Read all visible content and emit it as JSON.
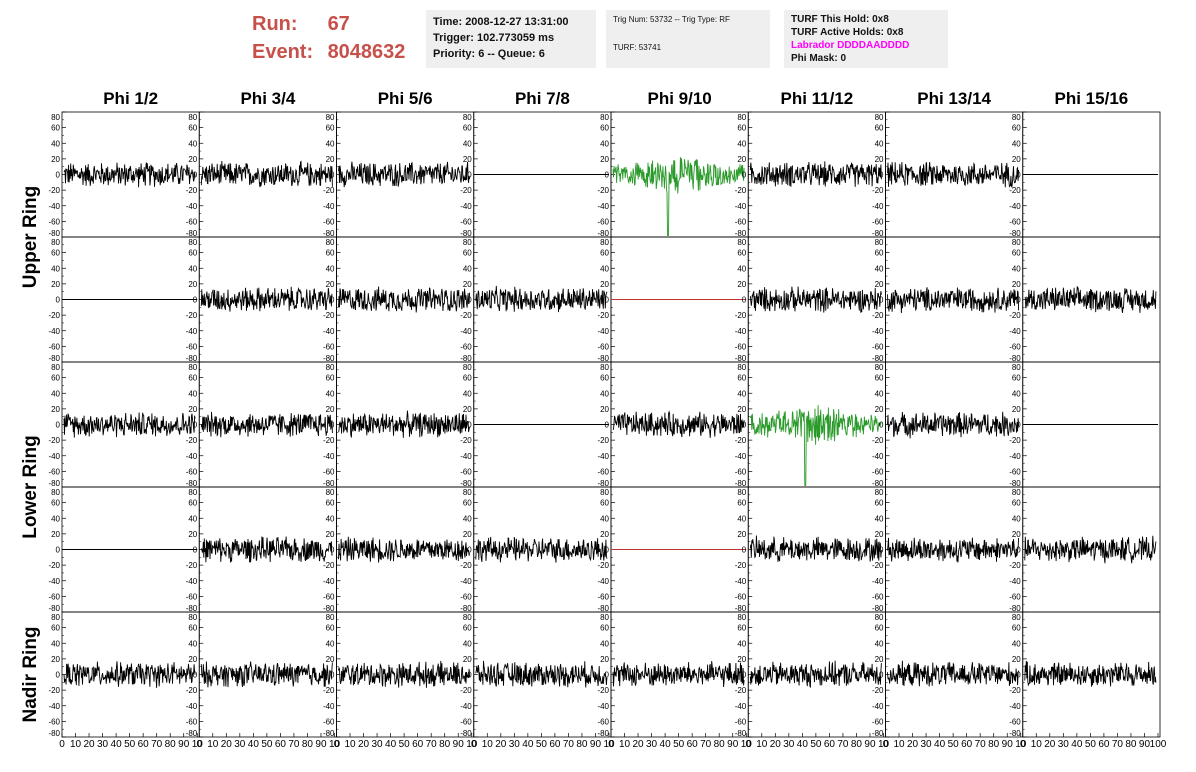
{
  "header": {
    "run_label": "Run:",
    "run_value": "67",
    "event_label": "Event:",
    "event_value": "8048632",
    "time": "Time: 2008-12-27 13:31:00",
    "trigger": "Trigger: 102.773059 ms",
    "priority": "Priority: 6 -- Queue: 6",
    "trig_num": "Trig Num: 53732 -- Trig Type: RF",
    "turf": "TURF: 53741",
    "turf_hold": "TURF This Hold: 0x8",
    "turf_active": "TURF Active Holds: 0x8",
    "labrador": "Labrador DDDDAADDDD",
    "phi_mask": "Phi Mask: 0"
  },
  "colors": {
    "header_red": "#c8504a",
    "info_bg": "#efefef",
    "labrador": "#ff00ff",
    "trace_normal": "#000000",
    "trace_triggered": "#2a9a2a",
    "trace_flat_red": "#c03030"
  },
  "chart_data": {
    "type": "line",
    "columns": [
      "Phi 1/2",
      "Phi 3/4",
      "Phi 5/6",
      "Phi 7/8",
      "Phi 9/10",
      "Phi 11/12",
      "Phi 13/14",
      "Phi 15/16"
    ],
    "ring_labels": [
      "Upper Ring",
      "Lower Ring",
      "Nadir Ring"
    ],
    "ylim": [
      -80,
      80
    ],
    "xlim": [
      0,
      100
    ],
    "yticks": [
      -80,
      -60,
      -40,
      -20,
      0,
      20,
      40,
      60,
      80
    ],
    "xticks": [
      0,
      10,
      20,
      30,
      40,
      50,
      60,
      70,
      80,
      90,
      100
    ],
    "row_styles": [
      [
        "n",
        "n",
        "n",
        "flat",
        "green",
        "n",
        "n",
        "flat"
      ],
      [
        "flat",
        "n",
        "n",
        "n",
        "flat-red",
        "n",
        "n",
        "n"
      ],
      [
        "n",
        "n",
        "n",
        "flat",
        "n",
        "green",
        "n",
        "flat"
      ],
      [
        "flat",
        "n",
        "n",
        "n",
        "flat-red",
        "n",
        "n",
        "n"
      ],
      [
        "n",
        "n",
        "n",
        "n",
        "n",
        "n",
        "n",
        "n"
      ]
    ],
    "noise_amplitude_typical": 15,
    "grid": false
  }
}
